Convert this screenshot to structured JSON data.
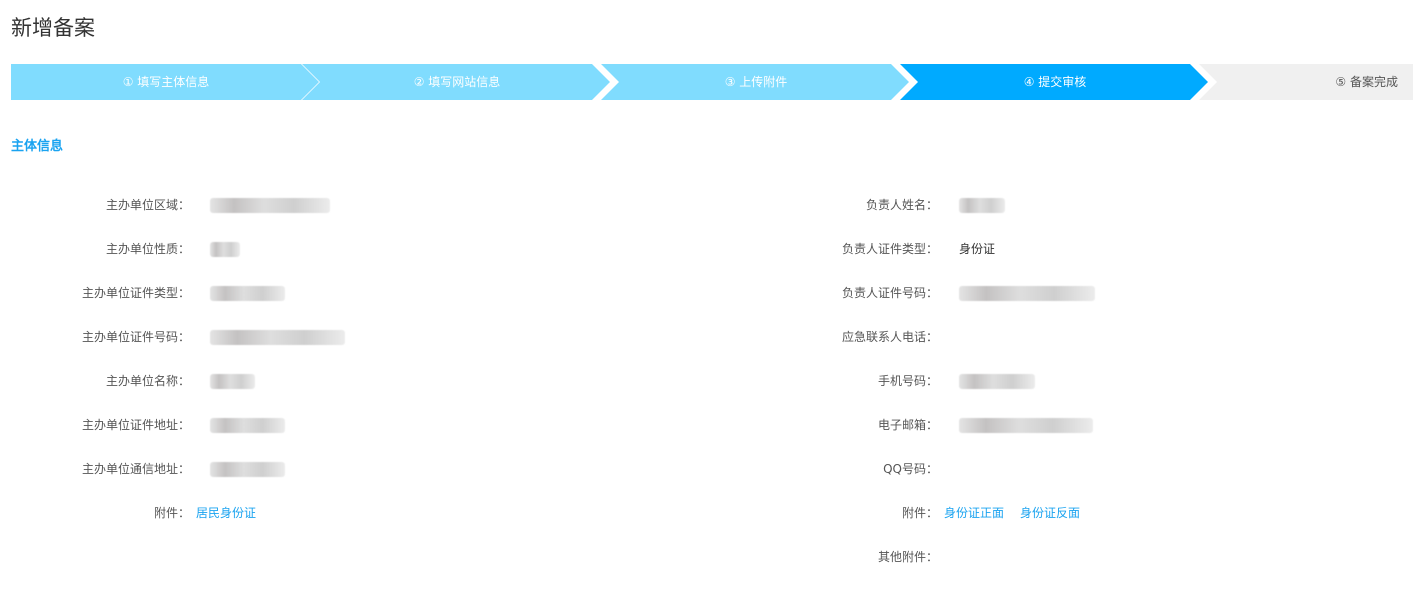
{
  "page_title": "新增备案",
  "steps": [
    {
      "label": "① 填写主体信息",
      "state": "done"
    },
    {
      "label": "② 填写网站信息",
      "state": "done"
    },
    {
      "label": "③ 上传附件",
      "state": "done"
    },
    {
      "label": "④ 提交审核",
      "state": "active"
    },
    {
      "label": "⑤ 备案完成",
      "state": "todo"
    }
  ],
  "colors": {
    "step_done": "#80dcfe",
    "step_active": "#00aaff",
    "step_todo": "#f0f0f0",
    "accent": "#1aa3f0"
  },
  "section_title": "主体信息",
  "left": {
    "region": "主办单位区域：",
    "nature": "主办单位性质：",
    "cert_type": "主办单位证件类型：",
    "cert_no": "主办单位证件号码：",
    "name": "主办单位名称：",
    "cert_addr": "主办单位证件地址：",
    "mail_addr": "主办单位通信地址：",
    "attach_label": "附件：",
    "attach_links": [
      "居民身份证"
    ]
  },
  "right": {
    "person_name": "负责人姓名：",
    "id_type": "负责人证件类型：",
    "id_type_value": "身份证",
    "id_no": "负责人证件号码：",
    "emergency_phone": "应急联系人电话：",
    "mobile": "手机号码：",
    "email": "电子邮箱：",
    "qq": "QQ号码：",
    "attach_label": "附件：",
    "attach_links": [
      "身份证正面",
      "身份证反面"
    ],
    "other_attach": "其他附件："
  }
}
